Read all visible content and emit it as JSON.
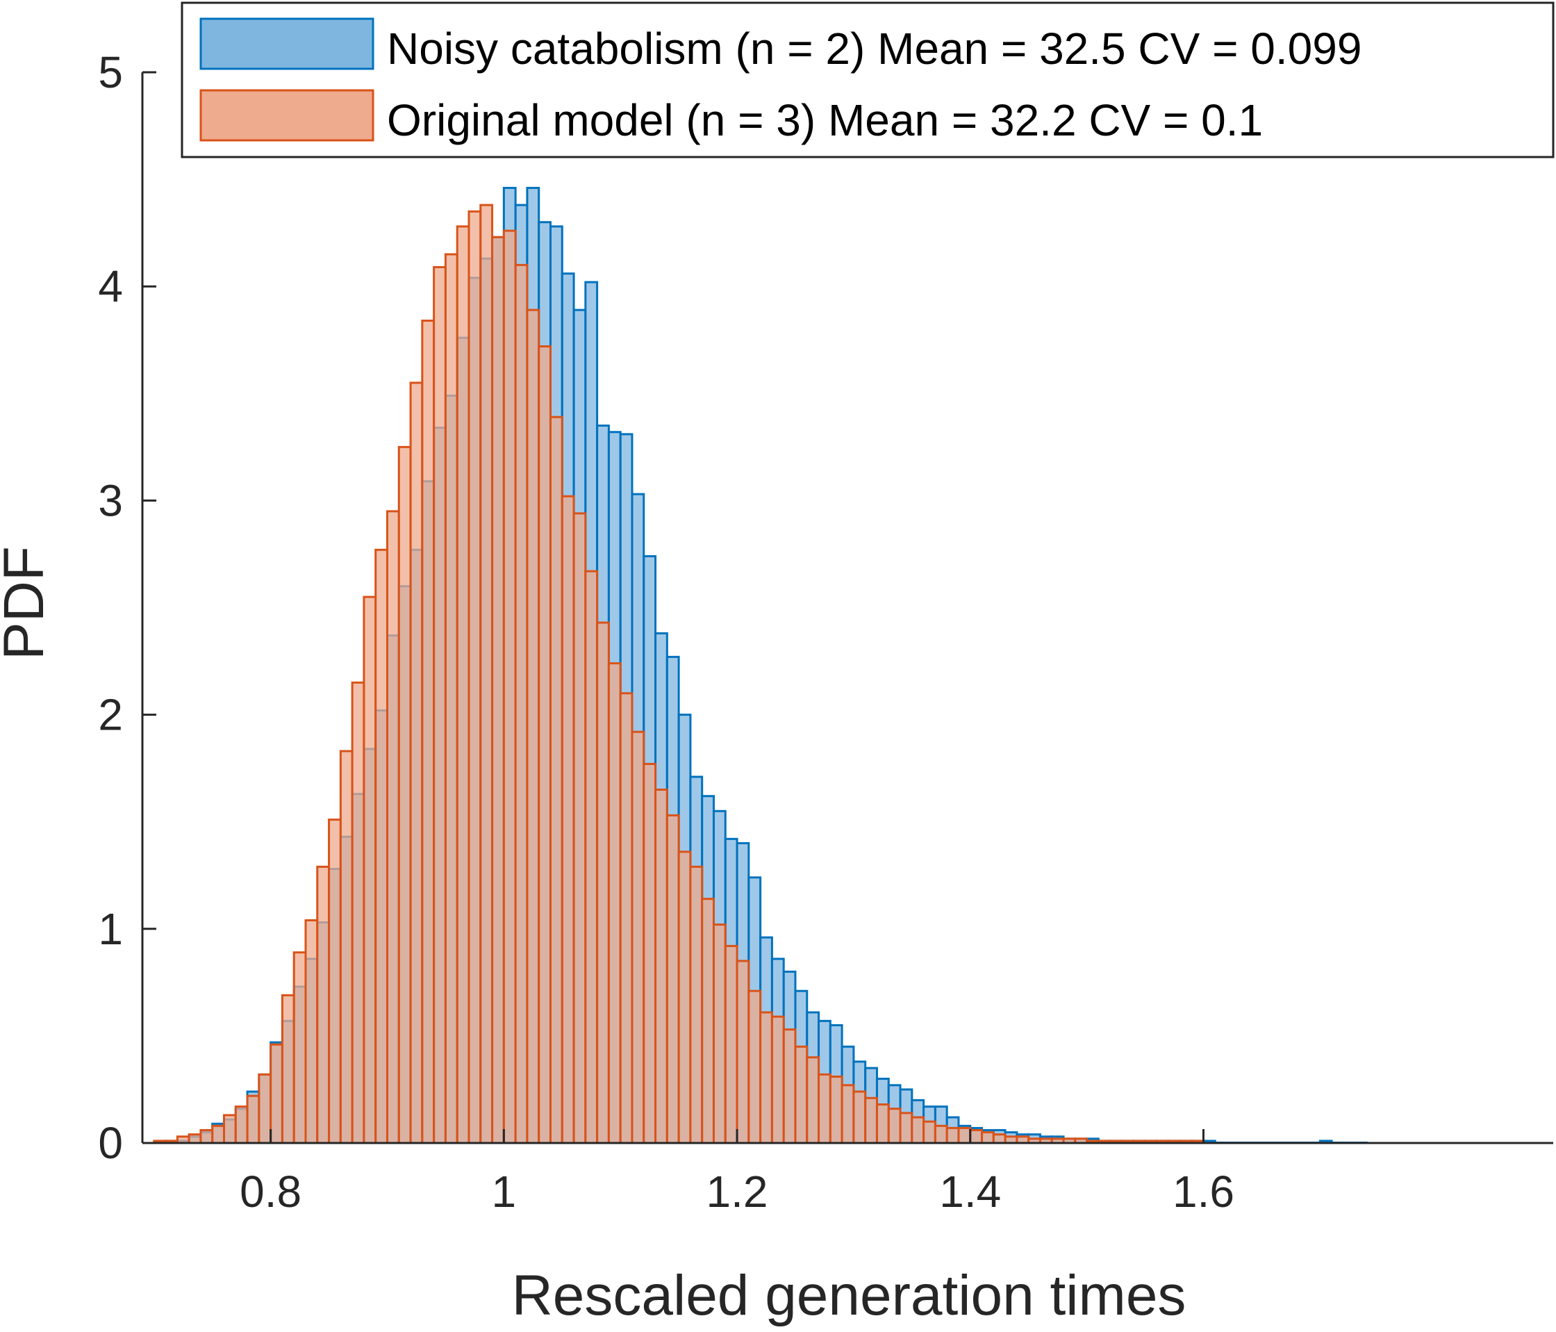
{
  "chart_data": {
    "type": "bar",
    "histogram": true,
    "xlabel": "Rescaled generation times",
    "ylabel": "PDF",
    "xlim": [
      0.69,
      1.9
    ],
    "ylim": [
      0,
      5
    ],
    "xticks": [
      0.8,
      1,
      1.2,
      1.4,
      1.6
    ],
    "xtick_labels": [
      "0.8",
      "1",
      "1.2",
      "1.4",
      "1.6"
    ],
    "yticks": [
      0,
      1,
      2,
      3,
      4,
      5
    ],
    "ytick_labels": [
      "0",
      "1",
      "2",
      "3",
      "4",
      "5"
    ],
    "bin_width": 0.01,
    "legend_position": "top-right",
    "grid": false,
    "series": [
      {
        "name": "Noisy catabolism (n = 2) Mean = 32.5 CV = 0.099",
        "fill": "#7fb6e0",
        "edge": "#0072bd",
        "bin_start": 0.7,
        "values": [
          0.0,
          0.01,
          0.01,
          0.03,
          0.05,
          0.09,
          0.11,
          0.16,
          0.24,
          0.32,
          0.47,
          0.57,
          0.73,
          0.86,
          1.03,
          1.28,
          1.43,
          1.63,
          1.84,
          2.02,
          2.37,
          2.6,
          2.77,
          3.09,
          3.34,
          3.49,
          3.76,
          4.04,
          4.13,
          4.23,
          4.46,
          4.38,
          4.46,
          4.3,
          4.28,
          4.06,
          3.89,
          4.02,
          3.35,
          3.32,
          3.31,
          3.03,
          2.74,
          2.38,
          2.27,
          2.0,
          1.71,
          1.62,
          1.55,
          1.42,
          1.4,
          1.24,
          0.96,
          0.86,
          0.8,
          0.71,
          0.61,
          0.57,
          0.55,
          0.45,
          0.38,
          0.35,
          0.3,
          0.27,
          0.25,
          0.2,
          0.17,
          0.17,
          0.12,
          0.08,
          0.07,
          0.06,
          0.06,
          0.05,
          0.04,
          0.04,
          0.03,
          0.03,
          0.02,
          0.02,
          0.02,
          0.01,
          0.01,
          0.01,
          0.01,
          0.01,
          0.01,
          0.01,
          0.01,
          0.01,
          0.01,
          0.0,
          0.0,
          0.0,
          0.0,
          0.0,
          0.0,
          0.0,
          0.0,
          0.0,
          0.01,
          0.0,
          0.0,
          0.0
        ]
      },
      {
        "name": "Original model (n = 3) Mean = 32.2 CV = 0.1",
        "fill": "#eeab8e",
        "edge": "#d95319",
        "bin_start": 0.7,
        "values": [
          0.01,
          0.01,
          0.03,
          0.04,
          0.06,
          0.08,
          0.13,
          0.17,
          0.22,
          0.32,
          0.46,
          0.69,
          0.89,
          1.04,
          1.29,
          1.51,
          1.83,
          2.15,
          2.55,
          2.77,
          2.95,
          3.25,
          3.55,
          3.84,
          4.09,
          4.15,
          4.28,
          4.35,
          4.38,
          4.23,
          4.26,
          4.1,
          3.89,
          3.72,
          3.39,
          3.02,
          2.94,
          2.67,
          2.43,
          2.24,
          2.1,
          1.92,
          1.77,
          1.65,
          1.53,
          1.36,
          1.29,
          1.14,
          1.02,
          0.92,
          0.85,
          0.71,
          0.61,
          0.59,
          0.53,
          0.45,
          0.4,
          0.32,
          0.31,
          0.27,
          0.24,
          0.21,
          0.18,
          0.16,
          0.14,
          0.12,
          0.1,
          0.08,
          0.07,
          0.07,
          0.06,
          0.05,
          0.04,
          0.03,
          0.03,
          0.02,
          0.02,
          0.02,
          0.02,
          0.02,
          0.01,
          0.01,
          0.01,
          0.01,
          0.01,
          0.01,
          0.01,
          0.01,
          0.01,
          0.01
        ]
      }
    ]
  }
}
